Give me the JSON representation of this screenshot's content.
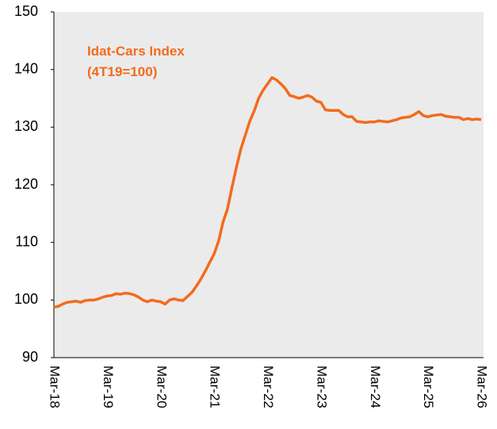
{
  "chart_data": {
    "type": "line",
    "annotations": [
      "Idat-Cars Index",
      "(4T19=100)"
    ],
    "categories": [
      "Mar-18",
      null,
      null,
      null,
      null,
      null,
      null,
      null,
      null,
      null,
      null,
      null,
      "Mar-19",
      null,
      null,
      null,
      null,
      null,
      null,
      null,
      null,
      null,
      null,
      null,
      "Mar-20",
      null,
      null,
      null,
      null,
      null,
      null,
      null,
      null,
      null,
      null,
      null,
      "Mar-21",
      null,
      null,
      null,
      null,
      null,
      null,
      null,
      null,
      null,
      null,
      null,
      "Mar-22",
      null,
      null,
      null,
      null,
      null,
      null,
      null,
      null,
      null,
      null,
      null,
      "Mar-23",
      null,
      null,
      null,
      null,
      null,
      null,
      null,
      null,
      null,
      null,
      null,
      "Mar-24",
      null,
      null,
      null,
      null,
      null,
      null,
      null,
      null,
      null,
      null,
      null,
      "Mar-25",
      null,
      null,
      null,
      null,
      null,
      null,
      null,
      null,
      null,
      null,
      null,
      "Mar-26"
    ],
    "series": [
      {
        "name": "Idat-Cars Index",
        "color": "#f26b1d",
        "values": [
          98.8,
          98.9,
          99.3,
          99.6,
          99.7,
          99.8,
          99.6,
          99.9,
          100.0,
          100.0,
          100.2,
          100.5,
          100.7,
          100.8,
          101.1,
          101.0,
          101.2,
          101.1,
          100.9,
          100.5,
          100.0,
          99.7,
          100.0,
          99.8,
          99.7,
          99.3,
          100.0,
          100.2,
          100.0,
          99.9,
          100.6,
          101.3,
          102.4,
          103.6,
          105.0,
          106.5,
          108.0,
          110.2,
          113.5,
          115.8,
          119.5,
          123.0,
          126.2,
          128.6,
          131.0,
          132.8,
          135.0,
          136.4,
          137.5,
          138.6,
          138.2,
          137.5,
          136.7,
          135.5,
          135.3,
          135.0,
          135.2,
          135.5,
          135.2,
          134.5,
          134.3,
          133.0,
          132.9,
          132.9,
          132.9,
          132.2,
          131.8,
          131.8,
          131.0,
          130.9,
          130.8,
          130.9,
          130.9,
          131.1,
          131.0,
          130.9,
          131.1,
          131.3,
          131.6,
          131.7,
          131.8,
          132.2,
          132.7,
          132.0,
          131.8,
          132.0,
          132.1,
          132.2,
          131.9,
          131.8,
          131.7,
          131.7,
          131.3,
          131.5,
          131.3,
          131.4,
          131.3
        ]
      }
    ],
    "ylim": [
      90,
      150
    ],
    "yticks": [
      90,
      100,
      110,
      120,
      130,
      140,
      150
    ],
    "background": "#ebebeb"
  }
}
